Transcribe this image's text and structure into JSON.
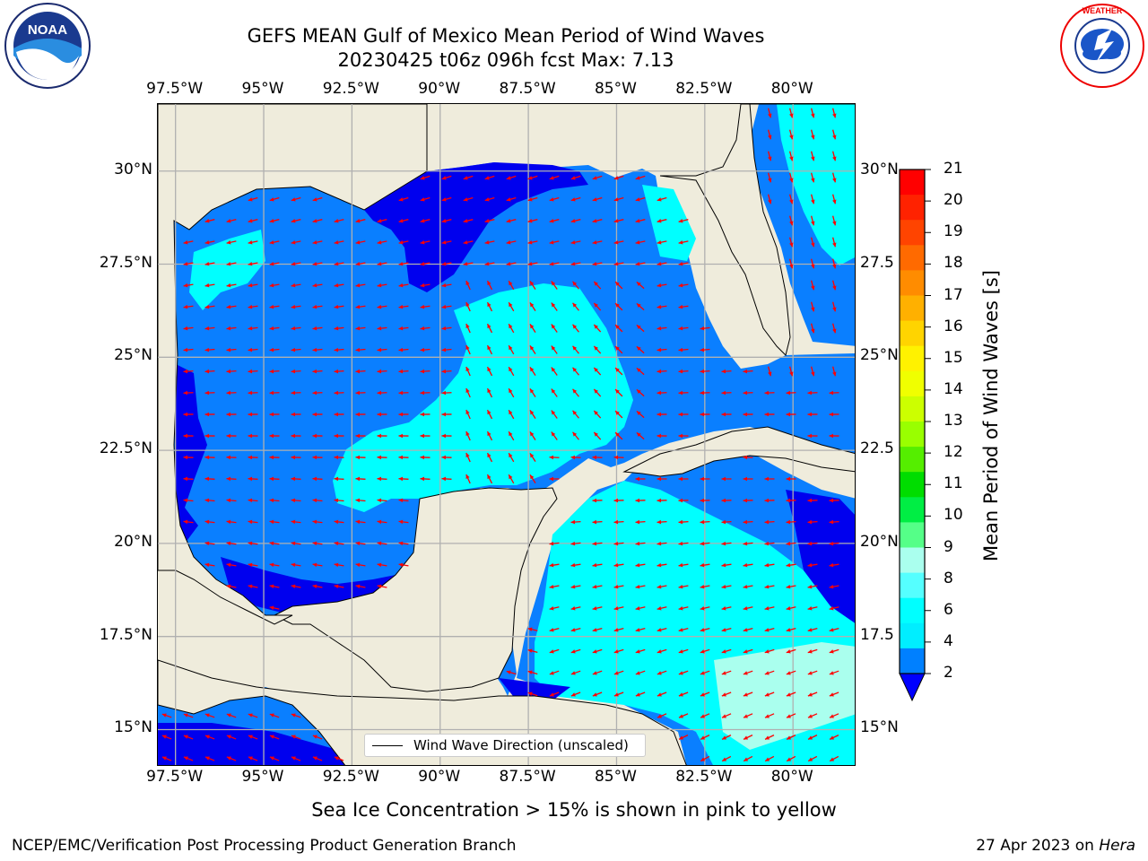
{
  "title": {
    "line1": "GEFS MEAN Gulf of Mexico Mean Period of Wind Waves",
    "line2": "20230425 t06z 096h fcst   Max: 7.13"
  },
  "logos": {
    "noaa": {
      "text": "NOAA",
      "ring_text": "NATIONAL OCEANIC AND ATMOSPHERIC ADMINISTRATION · U.S. DEPARTMENT OF COMMERCE",
      "icon": "noaa-logo"
    },
    "nws": {
      "ring_text": "NATIONAL WEATHER SERVICE",
      "icon": "nws-logo"
    }
  },
  "axes": {
    "lon_labels": [
      "97.5°W",
      "95°W",
      "92.5°W",
      "90°W",
      "87.5°W",
      "85°W",
      "82.5°W",
      "80°W"
    ],
    "lat_labels_left": [
      "30°N",
      "27.5°N",
      "25°N",
      "22.5°N",
      "20°N",
      "17.5°N",
      "15°N"
    ],
    "lat_labels_right": [
      "30°N",
      "27.5",
      "25°N",
      "22.5",
      "20°N",
      "17.5",
      "15°N"
    ],
    "lon_range": [
      -98,
      -78.2
    ],
    "lat_range": [
      14,
      31.8
    ],
    "grid": true
  },
  "colorbar": {
    "label": "Mean Period of Wind Waves [s]",
    "ticks": [
      "21",
      "20",
      "19",
      "18",
      "17",
      "16",
      "15",
      "14",
      "13",
      "12",
      "11",
      "10",
      "9",
      "8",
      "6",
      "4",
      "2"
    ],
    "colors": [
      "#ff0000",
      "#ff2200",
      "#ff4400",
      "#ff6a00",
      "#ff8c00",
      "#ffb000",
      "#ffd400",
      "#fff200",
      "#f0ff00",
      "#ccff00",
      "#99ff00",
      "#55ee00",
      "#00dd00",
      "#00ee44",
      "#55ff88",
      "#aaffee",
      "#55ffff",
      "#00ffff",
      "#00eeff",
      "#0080ff"
    ],
    "extend_color": "#0000ff"
  },
  "legend": {
    "text": "Wind Wave Direction (unscaled)"
  },
  "map_colors": {
    "land": "#efecdc",
    "coast": "#000000",
    "arrow": "#ff0000",
    "grid": "#b0b0b0",
    "band_2_4": "#0a7fff",
    "band_lt2": "#0000ee",
    "band_4_6": "#00ffff",
    "band_6_8": "#aaffee"
  },
  "note": "Sea Ice Concentration > 15% is shown in pink to yellow",
  "footer": {
    "left": "NCEP/EMC/Verification Post Processing Product Generation Branch",
    "right_date": "27 Apr 2023 on ",
    "right_host": "Hera"
  }
}
